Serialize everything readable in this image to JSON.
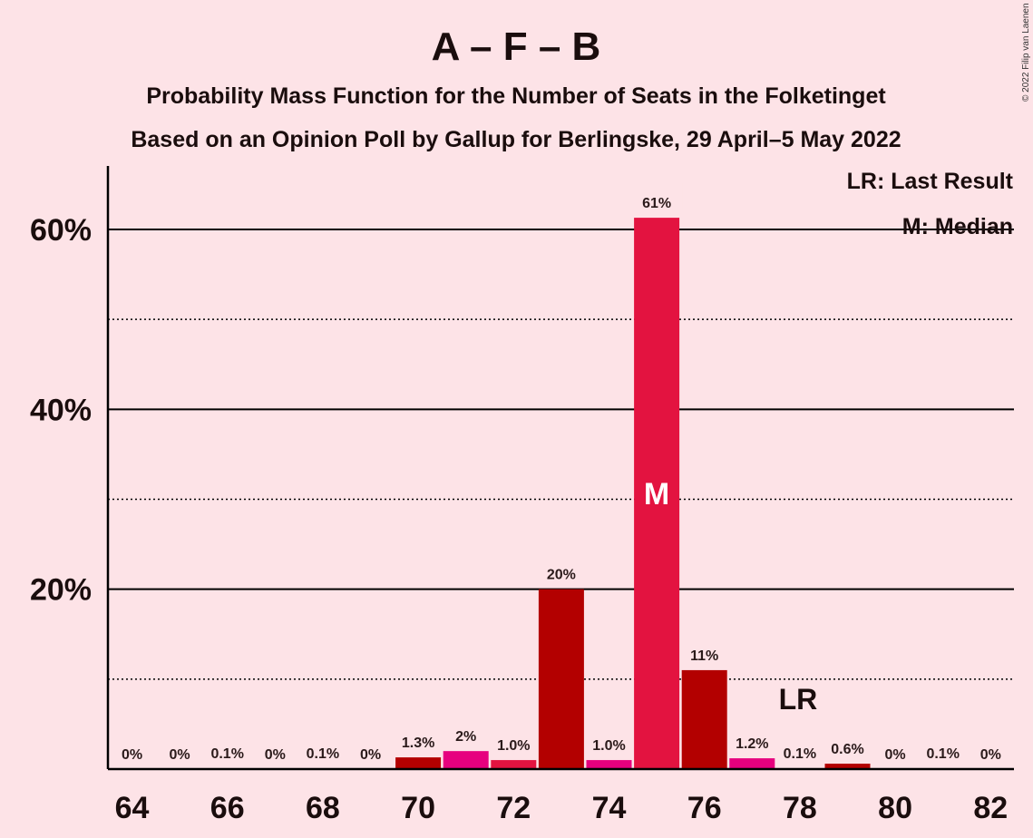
{
  "chart_data": {
    "type": "bar",
    "title": "A – F – B",
    "subtitle_1": "Probability Mass Function for the Number of Seats in the Folketinget",
    "subtitle_2": "Based on an Opinion Poll by Gallup for Berlingske, 29 April–5 May 2022",
    "copyright": "© 2022 Filip van Laenen",
    "legend": {
      "placement": "top-right",
      "lr": "LR: Last Result",
      "m": "M: Median"
    },
    "x": [
      64,
      65,
      66,
      67,
      68,
      69,
      70,
      71,
      72,
      73,
      74,
      75,
      76,
      77,
      78,
      79,
      80,
      81,
      82
    ],
    "x_tick_labels": [
      "64",
      "66",
      "68",
      "70",
      "72",
      "74",
      "76",
      "78",
      "80",
      "82"
    ],
    "values": [
      0,
      0,
      0.1,
      0,
      0.1,
      0,
      1.3,
      2,
      1.0,
      20,
      1.0,
      61.3,
      11,
      1.2,
      0.1,
      0.6,
      0,
      0.1,
      0
    ],
    "labels": [
      "0%",
      "0%",
      "0.1%",
      "0%",
      "0.1%",
      "0%",
      "1.3%",
      "2%",
      "1.0%",
      "20%",
      "1.0%",
      "61%",
      "11%",
      "1.2%",
      "0.1%",
      "0.6%",
      "0%",
      "0.1%",
      "0%"
    ],
    "bar_colors": [
      "#b30000",
      "#e6007e",
      "#e31340",
      "#b30000",
      "#e6007e",
      "#e31340",
      "#b30000",
      "#e6007e",
      "#e31340",
      "#b30000",
      "#e6007e",
      "#e31340",
      "#b30000",
      "#e6007e",
      "#e31340",
      "#b30000",
      "#e6007e",
      "#e31340",
      "#b30000"
    ],
    "y_tick_labels": [
      "20%",
      "40%",
      "60%"
    ],
    "y_ticks": [
      20,
      40,
      60
    ],
    "y_minor_ticks": [
      10,
      30,
      50
    ],
    "ylim": [
      0,
      67
    ],
    "median_seat": 75,
    "median_marker": "M",
    "last_result_seat": 78,
    "last_result_marker": "LR",
    "grid": true
  }
}
